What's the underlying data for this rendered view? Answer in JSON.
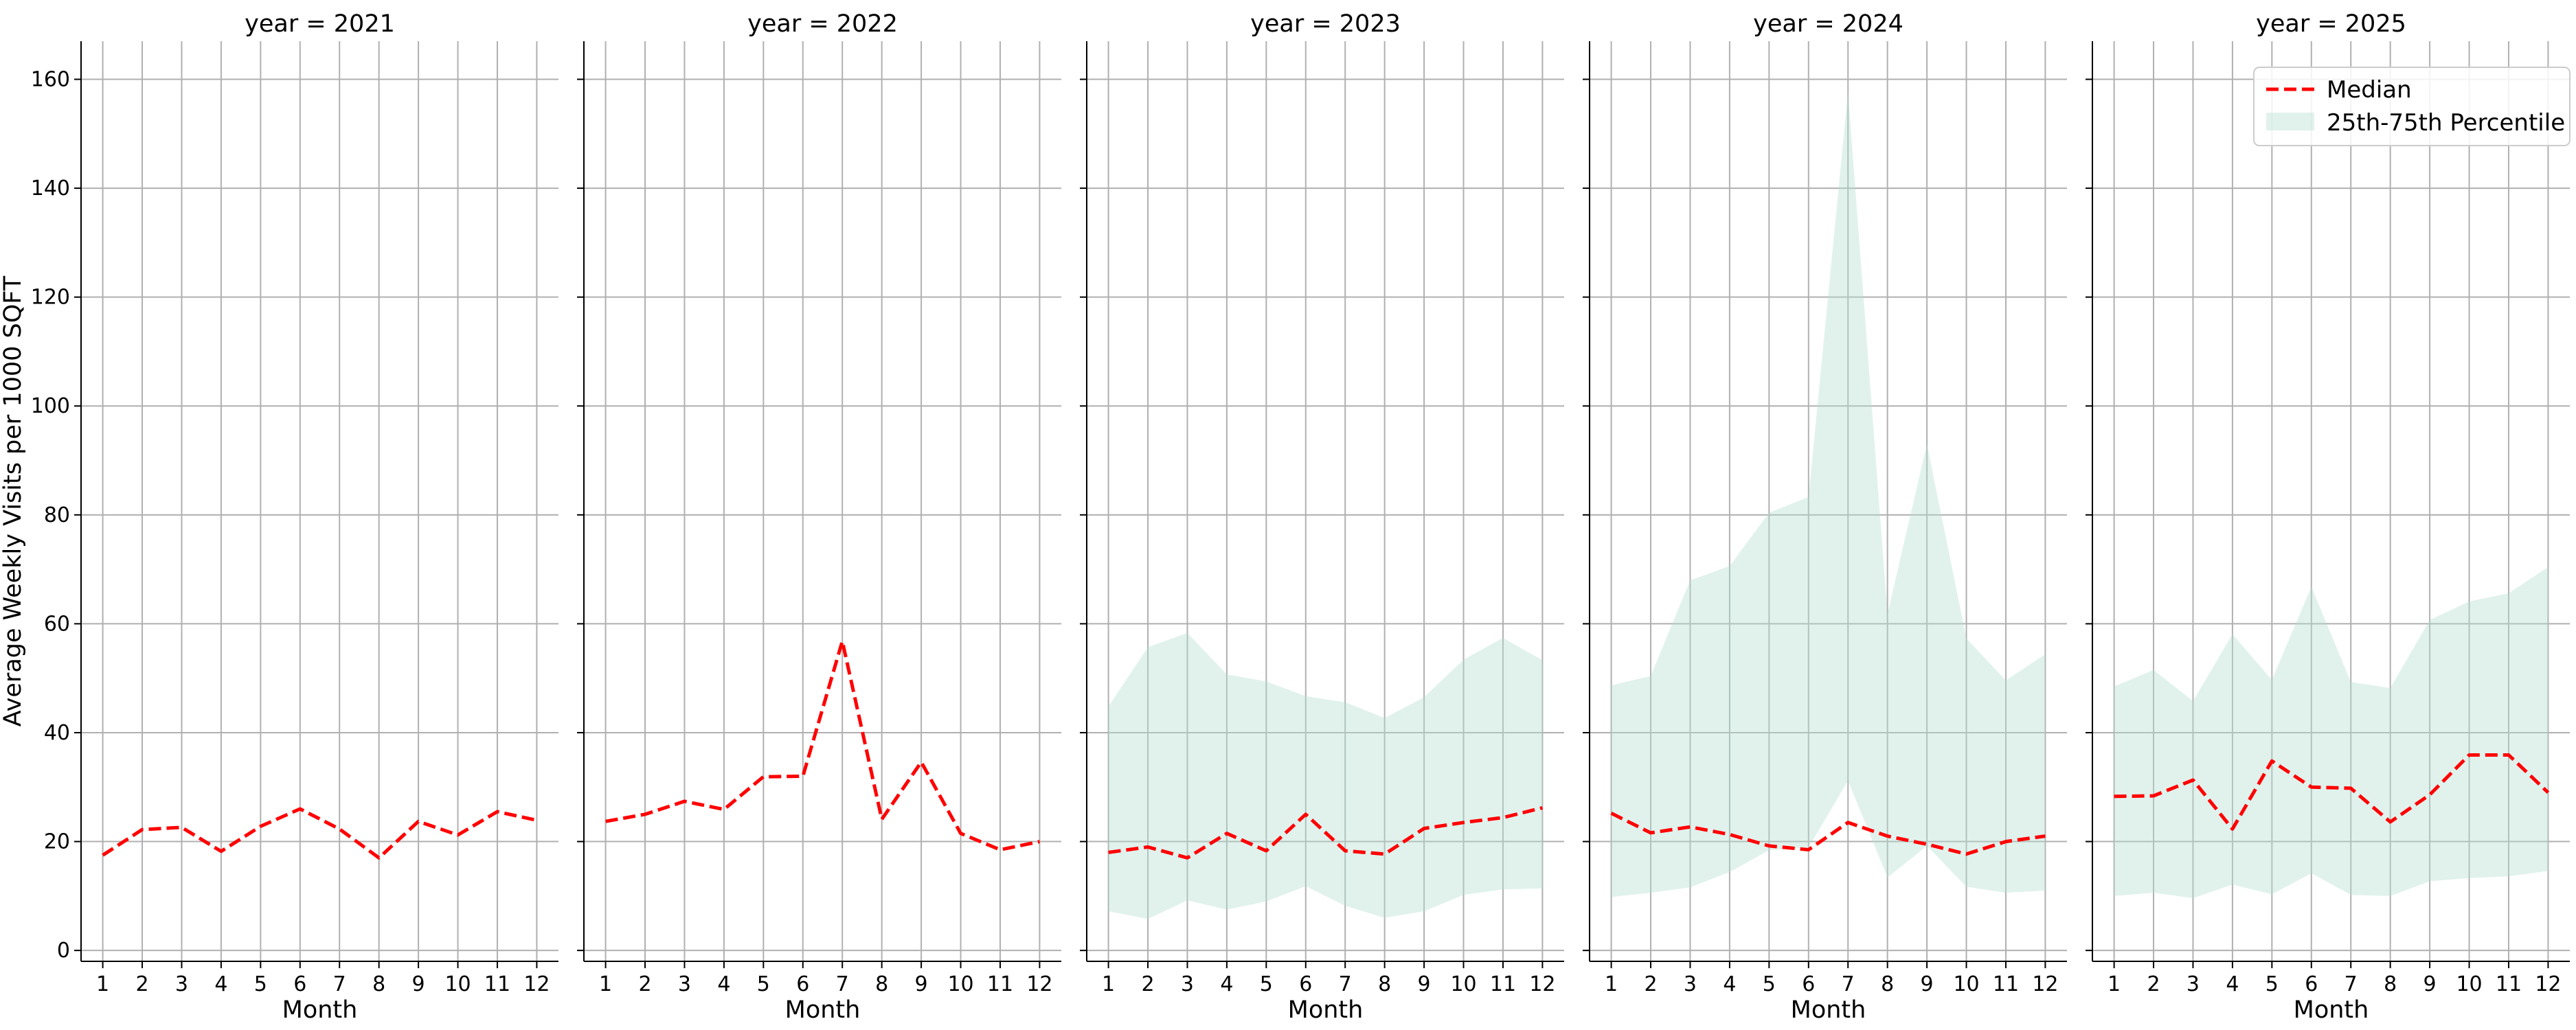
{
  "chart_data": {
    "type": "line",
    "ylabel": "Average Weekly Visits per 1000 SQFT",
    "xlabel": "Month",
    "x": [
      1,
      2,
      3,
      4,
      5,
      6,
      7,
      8,
      9,
      10,
      11,
      12
    ],
    "x_tick_labels": [
      "1",
      "2",
      "3",
      "4",
      "5",
      "6",
      "7",
      "8",
      "9",
      "10",
      "11",
      "12"
    ],
    "ylim": [
      -2,
      167
    ],
    "y_ticks": [
      0,
      20,
      40,
      60,
      80,
      100,
      120,
      140,
      160
    ],
    "y_tick_labels": [
      "0",
      "20",
      "40",
      "60",
      "80",
      "100",
      "120",
      "140",
      "160"
    ],
    "grid": true,
    "legend": {
      "placement": "top-right",
      "median_label": "Median",
      "band_label": "25th-75th Percentile"
    },
    "colors": {
      "median": "#ff0000",
      "band": "#b3dfd3"
    },
    "panels": [
      {
        "title": "year = 2021",
        "median": [
          17.5,
          22.2,
          22.6,
          18.2,
          22.8,
          26.0,
          22.3,
          17.0,
          23.7,
          21.2,
          25.5,
          23.9
        ],
        "p25": null,
        "p75": null
      },
      {
        "title": "year = 2022",
        "median": [
          23.7,
          25.0,
          27.4,
          25.9,
          31.9,
          32.0,
          56.8,
          24.1,
          34.6,
          21.5,
          18.5,
          20.0
        ],
        "p25": null,
        "p75": null
      },
      {
        "title": "year = 2023",
        "median": [
          18.0,
          19.0,
          17.0,
          21.5,
          18.3,
          25.0,
          18.3,
          17.7,
          22.4,
          23.5,
          24.4,
          26.2
        ],
        "p25": [
          7.2,
          5.8,
          9.2,
          7.5,
          9.0,
          11.8,
          8.2,
          6.0,
          7.2,
          10.2,
          11.2,
          11.4
        ],
        "p75": [
          44.8,
          55.7,
          58.3,
          50.7,
          49.4,
          46.7,
          45.6,
          42.7,
          46.5,
          53.4,
          57.4,
          53.3
        ]
      },
      {
        "title": "year = 2024",
        "median": [
          25.2,
          21.6,
          22.7,
          21.3,
          19.2,
          18.5,
          23.5,
          21.0,
          19.5,
          17.7,
          20.0,
          21.0
        ],
        "p25": [
          9.8,
          10.6,
          11.6,
          14.4,
          18.4,
          18.9,
          31.2,
          13.4,
          19.2,
          11.7,
          10.6,
          11.0
        ],
        "p75": [
          48.7,
          50.4,
          68.0,
          70.6,
          80.4,
          83.3,
          157.7,
          61.8,
          93.0,
          57.3,
          49.6,
          54.4
        ]
      },
      {
        "title": "year = 2025",
        "median": [
          28.3,
          28.4,
          31.3,
          22.3,
          34.8,
          30.0,
          29.8,
          23.6,
          28.6,
          35.9,
          35.9,
          29.0
        ],
        "p25": [
          10.0,
          10.6,
          9.6,
          12.1,
          10.3,
          14.2,
          10.2,
          10.0,
          12.7,
          13.3,
          13.6,
          14.6
        ],
        "p75": [
          48.5,
          51.5,
          45.8,
          58.1,
          49.7,
          66.8,
          49.3,
          48.2,
          60.7,
          64.1,
          65.6,
          70.4
        ]
      }
    ]
  }
}
